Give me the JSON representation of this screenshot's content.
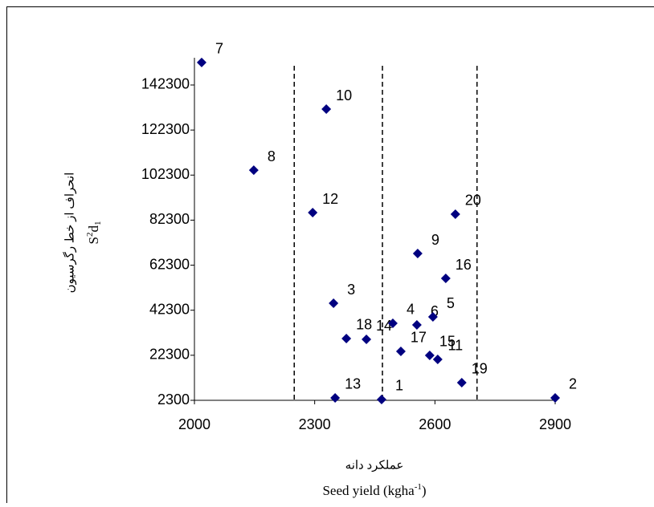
{
  "chart_data": {
    "type": "scatter",
    "x_title_fa": "عملکرد دانه",
    "x_title_en": {
      "text": "Seed yield (kgha",
      "sup": "-1",
      "end": ")"
    },
    "y_title_fa": "انحراف از خط رگرسیون",
    "y_title_en": {
      "base": "S",
      "sup": "2",
      "mid": "d",
      "sub": "1"
    },
    "labels": [
      "7",
      "10",
      "8",
      "12",
      "20",
      "9",
      "16",
      "3",
      "18",
      "14",
      "4",
      "17",
      "6",
      "5",
      "15",
      "11",
      "19",
      "13",
      "1",
      "2"
    ],
    "x": [
      2018,
      2329,
      2148,
      2295,
      2651,
      2557,
      2627,
      2347,
      2379,
      2429,
      2495,
      2515,
      2555,
      2595,
      2587,
      2607,
      2667,
      2351,
      2467,
      2900
    ],
    "y": [
      152300,
      131600,
      104500,
      85650,
      84940,
      67480,
      56440,
      45400,
      29730,
      29370,
      36500,
      24030,
      35780,
      39340,
      22250,
      20470,
      10140,
      3370,
      2660,
      3370
    ],
    "color": "#000080",
    "xlim": [
      2000,
      2900
    ],
    "xticks": [
      2000,
      2300,
      2600,
      2900
    ],
    "ylim": [
      2300,
      154400
    ],
    "yticks": [
      2300,
      22300,
      42300,
      62300,
      82300,
      102300,
      122300,
      142300
    ],
    "reference_lines": [
      2249,
      2469,
      2705
    ]
  }
}
